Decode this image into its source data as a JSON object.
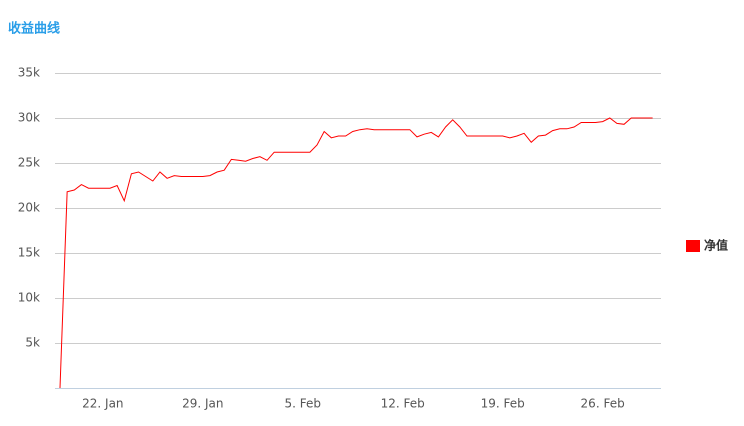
{
  "chart_data": {
    "type": "line",
    "title": "收益曲线",
    "categories": [
      null,
      null,
      null,
      null,
      null,
      null,
      "22. Jan",
      null,
      null,
      null,
      null,
      null,
      null,
      null,
      null,
      null,
      null,
      null,
      null,
      null,
      "29. Jan",
      null,
      null,
      null,
      null,
      null,
      null,
      null,
      null,
      null,
      null,
      null,
      null,
      null,
      "5. Feb",
      null,
      null,
      null,
      null,
      null,
      null,
      null,
      null,
      null,
      null,
      null,
      null,
      null,
      "12. Feb",
      null,
      null,
      null,
      null,
      null,
      null,
      null,
      null,
      null,
      null,
      null,
      null,
      null,
      "19. Feb",
      null,
      null,
      null,
      null,
      null,
      null,
      null,
      null,
      null,
      null,
      null,
      null,
      null,
      "26. Feb",
      null,
      null,
      null,
      null,
      null,
      null,
      null
    ],
    "series": [
      {
        "name": "净值",
        "color": "#ff0000",
        "values": [
          0,
          21800,
          22000,
          22600,
          22200,
          22200,
          22200,
          22200,
          22500,
          20800,
          23800,
          24000,
          23500,
          23000,
          24000,
          23300,
          23600,
          23500,
          23500,
          23500,
          23500,
          23600,
          24000,
          24200,
          25400,
          25300,
          25200,
          25500,
          25700,
          25300,
          26200,
          26200,
          26200,
          26200,
          26200,
          26200,
          27000,
          28500,
          27800,
          28000,
          28000,
          28500,
          28700,
          28800,
          28700,
          28700,
          28700,
          28700,
          28700,
          28700,
          27900,
          28200,
          28400,
          27900,
          29000,
          29800,
          29000,
          28000,
          28000,
          28000,
          28000,
          28000,
          28000,
          27800,
          28000,
          28300,
          27300,
          28000,
          28100,
          28600,
          28800,
          28800,
          29000,
          29500,
          29500,
          29500,
          29600,
          30000,
          29400,
          29300,
          30000,
          30000,
          30000,
          30000
        ]
      }
    ],
    "ylim": [
      0,
      35000
    ],
    "yticks": [
      {
        "value": 5000,
        "label": "5k"
      },
      {
        "value": 10000,
        "label": "10k"
      },
      {
        "value": 15000,
        "label": "15k"
      },
      {
        "value": 20000,
        "label": "20k"
      },
      {
        "value": 25000,
        "label": "25k"
      },
      {
        "value": 30000,
        "label": "30k"
      },
      {
        "value": 35000,
        "label": "35k"
      }
    ],
    "grid": true,
    "legend": "right"
  }
}
